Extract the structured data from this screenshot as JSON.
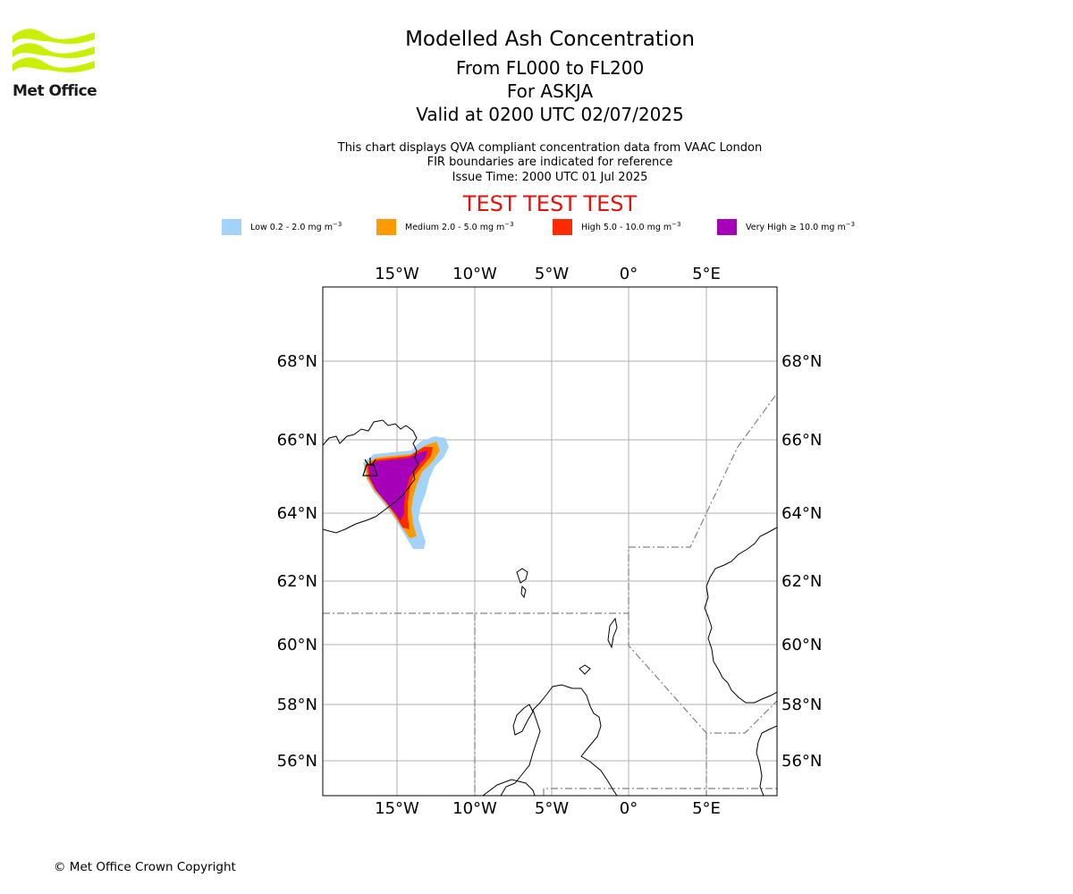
{
  "logo": {
    "text": "Met Office",
    "color": "#c8f000"
  },
  "titles": {
    "main": "Modelled Ash Concentration",
    "levels": "From FL000 to FL200",
    "volcano": "For ASKJA",
    "valid": "Valid at 0200 UTC 02/07/2025"
  },
  "subtitles": {
    "line1": "This chart displays QVA compliant concentration data from VAAC London",
    "line2": "FIR boundaries are indicated for reference",
    "issue": "Issue Time: 2000 UTC 01 Jul 2025"
  },
  "banner": {
    "text": "TEST TEST TEST",
    "color": "#e3120b"
  },
  "legend": [
    {
      "label": "Low 0.2 - 2.0 mg m",
      "exp": "−3",
      "color": "#a3d3fb"
    },
    {
      "label": "Medium 2.0 - 5.0 mg m",
      "exp": "−3",
      "color": "#ff9a00"
    },
    {
      "label": "High 5.0 - 10.0 mg m",
      "exp": "−3",
      "color": "#ff2a00"
    },
    {
      "label": "Very High ≥ 10.0 mg m",
      "exp": "−3",
      "color": "#a600b8"
    }
  ],
  "map": {
    "lon_labels": [
      "15°W",
      "10°W",
      "5°W",
      "0°",
      "5°E"
    ],
    "lat_labels": [
      "68°N",
      "66°N",
      "64°N",
      "62°N",
      "60°N",
      "58°N",
      "56°N"
    ]
  },
  "copyright": "© Met Office Crown Copyright"
}
